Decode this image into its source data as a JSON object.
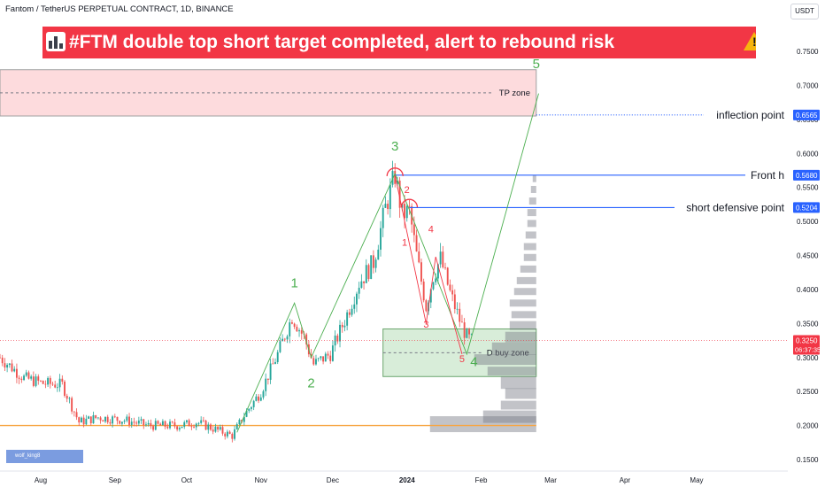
{
  "symbol_header": "Fantom / TetherUS PERPETUAL CONTRACT, 1D, BINANCE",
  "currency": "USDT",
  "headline": "#FTM double top short target completed,  alert to rebound risk",
  "watermark": "wolf_king8",
  "chart_data": {
    "type": "candlestick",
    "title": "#FTM double top short target completed,  alert to rebound risk",
    "xlabel": "",
    "ylabel": "",
    "x_ticks": [
      "Aug",
      "Sep",
      "Oct",
      "Nov",
      "Dec",
      "2024",
      "Feb",
      "Mar",
      "Apr",
      "May"
    ],
    "y_ticks": [
      0.75,
      0.7,
      0.65,
      0.6,
      0.55,
      0.5,
      0.45,
      0.4,
      0.35,
      0.3,
      0.25,
      0.2,
      0.15
    ],
    "y_tick_labels": [
      "0.7500",
      "0.7000",
      "0.6500",
      "0.6000",
      "0.5500",
      "0.5000",
      "0.4500",
      "0.4000",
      "0.3500",
      "0.3000",
      "0.2500",
      "0.2000",
      "0.1500"
    ],
    "ylim": [
      0.15,
      0.78
    ],
    "date_range": [
      "2023-07-15",
      "2024-05-28"
    ],
    "series": [
      {
        "type": "candlestick",
        "close_path": [
          [
            "2023-07-15",
            0.3
          ],
          [
            "2023-07-25",
            0.27
          ],
          [
            "2023-08-02",
            0.262
          ],
          [
            "2023-08-10",
            0.26
          ],
          [
            "2023-08-17",
            0.205
          ],
          [
            "2023-08-25",
            0.212
          ],
          [
            "2023-09-05",
            0.208
          ],
          [
            "2023-09-15",
            0.2
          ],
          [
            "2023-09-28",
            0.2
          ],
          [
            "2023-10-05",
            0.205
          ],
          [
            "2023-10-14",
            0.193
          ],
          [
            "2023-10-20",
            0.185
          ],
          [
            "2023-10-25",
            0.215
          ],
          [
            "2023-11-01",
            0.25
          ],
          [
            "2023-11-08",
            0.305
          ],
          [
            "2023-11-14",
            0.36
          ],
          [
            "2023-11-19",
            0.33
          ],
          [
            "2023-11-23",
            0.29
          ],
          [
            "2023-11-30",
            0.305
          ],
          [
            "2023-12-06",
            0.355
          ],
          [
            "2023-12-12",
            0.41
          ],
          [
            "2023-12-18",
            0.44
          ],
          [
            "2023-12-23",
            0.52
          ],
          [
            "2023-12-27",
            0.568
          ],
          [
            "2023-12-30",
            0.51
          ],
          [
            "2024-01-02",
            0.515
          ],
          [
            "2024-01-05",
            0.45
          ],
          [
            "2024-01-09",
            0.375
          ],
          [
            "2024-01-12",
            0.42
          ],
          [
            "2024-01-15",
            0.445
          ],
          [
            "2024-01-19",
            0.395
          ],
          [
            "2024-01-23",
            0.355
          ],
          [
            "2024-01-26",
            0.33
          ],
          [
            "2024-01-28",
            0.325
          ]
        ]
      }
    ],
    "volume_profile": "horizontal grey histogram on right side",
    "horizontal_lines": [
      {
        "label": "Front h",
        "price": 0.568
      },
      {
        "label": "short defensive point",
        "price": 0.5204
      },
      {
        "label": "inflection point",
        "price": 0.6565
      },
      {
        "label": "",
        "price": 0.2
      }
    ],
    "price_badges": [
      {
        "value": "0.6565",
        "price": 0.6565
      },
      {
        "value": "0.5680",
        "price": 0.568
      },
      {
        "value": "0.5204",
        "price": 0.5204
      }
    ],
    "current_price": {
      "value": "0.3250",
      "countdown": "06:37:35",
      "price": 0.325
    },
    "zones": [
      {
        "label": "TP zone",
        "price_low": 0.655,
        "price_high": 0.723,
        "date_start": "2023-07-15",
        "date_end": "2024-02-24"
      },
      {
        "label": "D buy zone",
        "price_low": 0.272,
        "price_high": 0.342,
        "date_start": "2023-12-22",
        "date_end": "2024-02-24"
      }
    ],
    "wave_labels": [
      {
        "text": "1",
        "date": "2023-11-15",
        "price": 0.403,
        "color": "green"
      },
      {
        "text": "2",
        "date": "2023-11-22",
        "price": 0.256,
        "color": "green"
      },
      {
        "text": "3",
        "date": "2023-12-27",
        "price": 0.604,
        "color": "green"
      },
      {
        "text": "4",
        "date": "2024-01-29",
        "price": 0.287,
        "color": "green"
      },
      {
        "text": "5",
        "date": "2024-02-24",
        "price": 0.725,
        "color": "green"
      },
      {
        "text": "1",
        "date": "2023-12-31",
        "price": 0.464,
        "color": "red"
      },
      {
        "text": "2",
        "date": "2024-01-01",
        "price": 0.542,
        "color": "red"
      },
      {
        "text": "3",
        "date": "2024-01-09",
        "price": 0.344,
        "color": "red"
      },
      {
        "text": "4",
        "date": "2024-01-11",
        "price": 0.484,
        "color": "red"
      },
      {
        "text": "5",
        "date": "2024-01-24",
        "price": 0.293,
        "color": "red"
      }
    ],
    "wave_lines_green": [
      [
        "2023-10-22",
        0.19
      ],
      [
        "2023-11-15",
        0.38
      ],
      [
        "2023-11-22",
        0.3
      ],
      [
        "2023-12-27",
        0.57
      ],
      [
        "2024-01-26",
        0.305
      ],
      [
        "2024-02-25",
        0.688
      ]
    ],
    "wave_lines_red": [
      [
        "2023-12-27",
        0.568
      ],
      [
        "2024-01-09",
        0.35
      ],
      [
        "2024-01-13",
        0.448
      ],
      [
        "2024-01-24",
        0.305
      ]
    ],
    "arcs": [
      {
        "date": "2023-12-27",
        "price": 0.568
      },
      {
        "date": "2024-01-02",
        "price": 0.522
      }
    ],
    "colors": {
      "up": "#26a69a",
      "down": "#ef5350",
      "green_wave": "#4caf50",
      "red_wave": "#f23645",
      "blue_line": "#2962ff",
      "orange_line": "#f7a542",
      "headline_bg": "#f23645"
    }
  }
}
